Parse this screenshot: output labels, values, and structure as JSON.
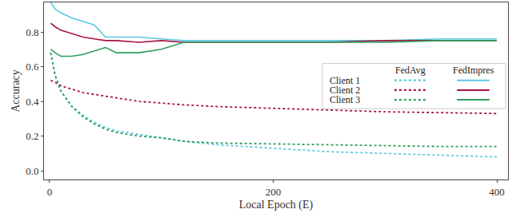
{
  "chart_data": {
    "type": "line",
    "x_label": "Local Epoch (E)",
    "y_label": "Accuracy",
    "x": [
      1,
      5,
      10,
      20,
      30,
      40,
      50,
      60,
      80,
      100,
      120,
      150,
      200,
      250,
      300,
      350,
      400
    ],
    "series": [
      {
        "name": "Client 1",
        "group": "FedAvg",
        "color": "#5ac8e0",
        "line_style": "dotted",
        "values": [
          0.68,
          0.55,
          0.46,
          0.37,
          0.32,
          0.28,
          0.25,
          0.23,
          0.21,
          0.19,
          0.17,
          0.15,
          0.13,
          0.11,
          0.1,
          0.09,
          0.08
        ]
      },
      {
        "name": "Client 2",
        "group": "FedAvg",
        "color": "#a8163f",
        "line_style": "dotted",
        "values": [
          0.52,
          0.51,
          0.49,
          0.47,
          0.45,
          0.44,
          0.43,
          0.42,
          0.4,
          0.39,
          0.38,
          0.37,
          0.36,
          0.35,
          0.34,
          0.335,
          0.33
        ]
      },
      {
        "name": "Client 3",
        "group": "FedAvg",
        "color": "#2e9e5b",
        "line_style": "dotted",
        "values": [
          0.68,
          0.55,
          0.46,
          0.37,
          0.31,
          0.27,
          0.24,
          0.22,
          0.2,
          0.19,
          0.17,
          0.16,
          0.155,
          0.15,
          0.145,
          0.14,
          0.14
        ]
      },
      {
        "name": "Client 1",
        "group": "FedImpres",
        "color": "#5ac8e0",
        "line_style": "solid",
        "values": [
          0.97,
          0.93,
          0.91,
          0.88,
          0.86,
          0.84,
          0.77,
          0.77,
          0.77,
          0.76,
          0.75,
          0.75,
          0.75,
          0.75,
          0.75,
          0.76,
          0.76
        ]
      },
      {
        "name": "Client 2",
        "group": "FedImpres",
        "color": "#a8163f",
        "line_style": "solid",
        "values": [
          0.85,
          0.83,
          0.81,
          0.79,
          0.77,
          0.76,
          0.75,
          0.75,
          0.74,
          0.75,
          0.74,
          0.74,
          0.74,
          0.74,
          0.75,
          0.75,
          0.75
        ]
      },
      {
        "name": "Client 3",
        "group": "FedImpres",
        "color": "#2e9e5b",
        "line_style": "solid",
        "values": [
          0.7,
          0.68,
          0.66,
          0.66,
          0.67,
          0.69,
          0.71,
          0.68,
          0.68,
          0.7,
          0.74,
          0.74,
          0.74,
          0.74,
          0.74,
          0.75,
          0.75
        ]
      }
    ],
    "xlim": [
      -5,
      410
    ],
    "xticks": [
      0,
      200,
      400
    ],
    "ylim": [
      -0.05,
      0.97
    ],
    "yticks": [
      {
        "value": 0,
        "label": "0.0"
      },
      0.2,
      0.4,
      0.6,
      0.8
    ],
    "grid": false,
    "legend": "right"
  }
}
